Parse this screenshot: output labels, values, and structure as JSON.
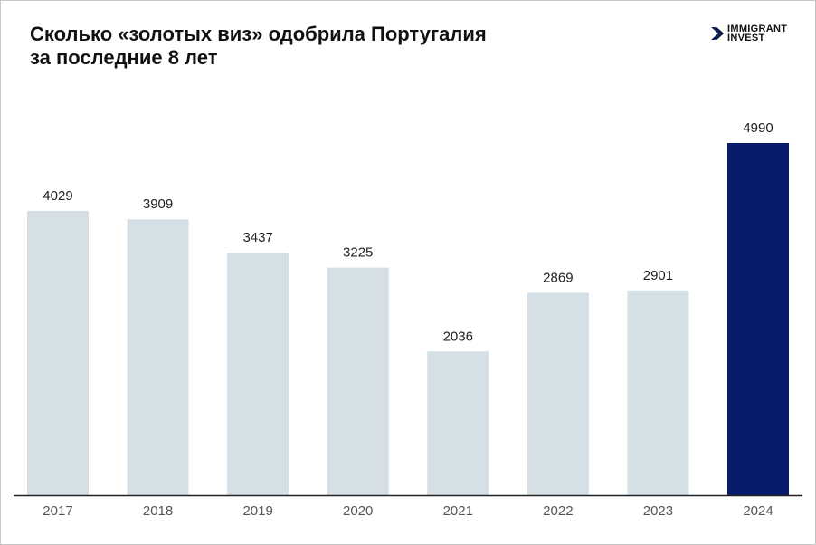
{
  "chart_data": {
    "type": "bar",
    "title": [
      "Сколько «золотых виз» одобрила Португалия",
      "за последние 8 лет"
    ],
    "categories": [
      "2017",
      "2018",
      "2019",
      "2020",
      "2021",
      "2022",
      "2023",
      "2024"
    ],
    "values": [
      4029,
      3909,
      3437,
      3225,
      2036,
      2869,
      2901,
      4990
    ],
    "colors": [
      "#d4dfe6",
      "#d4dfe6",
      "#d4dfe6",
      "#d4dfe6",
      "#d4dfe6",
      "#d4dfe6",
      "#d4dfe6",
      "#071c6b"
    ]
  },
  "logo": [
    "IMMIGRANT",
    "INVEST"
  ]
}
